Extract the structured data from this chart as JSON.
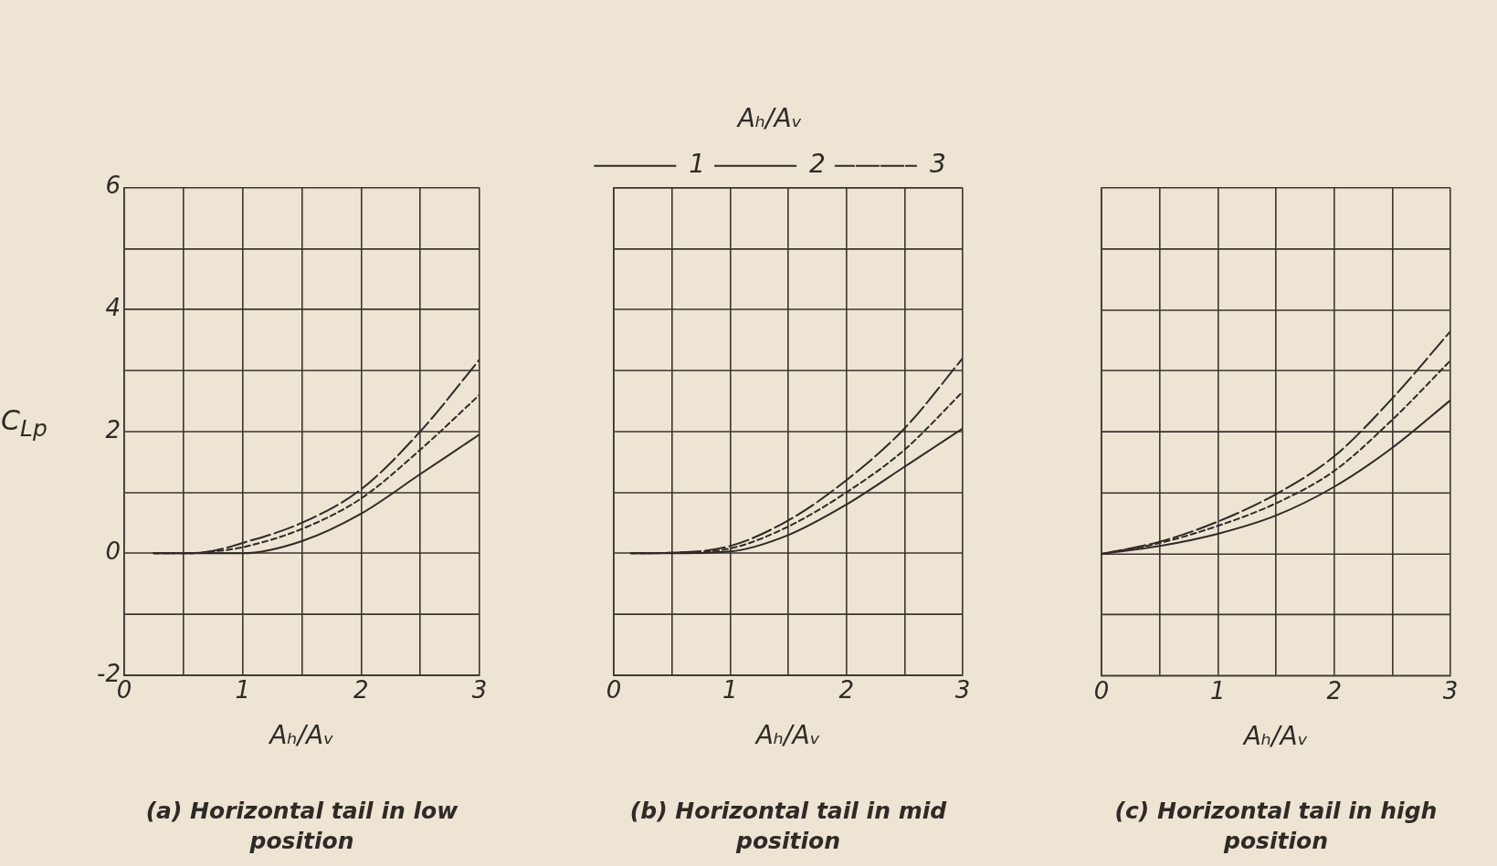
{
  "chart_data": [
    {
      "type": "line",
      "title": "(a) Horizontal tail in low position",
      "xlabel": "Aₕ/Aᵥ",
      "ylabel": "C$_{Lp}$",
      "x": [
        0.25,
        0.5,
        0.75,
        1,
        1.5,
        2,
        2.5,
        3
      ],
      "xlim": [
        0,
        3
      ],
      "ylim": [
        -2,
        6
      ],
      "xticks": [
        0,
        {
          "value": 0.5,
          "label": null
        },
        1,
        {
          "value": 1.5,
          "label": null
        },
        2,
        {
          "value": 2.5,
          "label": null
        },
        3
      ],
      "yticks": [
        -2,
        {
          "value": -1,
          "label": null
        },
        0,
        {
          "value": 1,
          "label": null
        },
        2,
        {
          "value": 3,
          "label": null
        },
        4,
        {
          "value": 5,
          "label": null
        },
        6
      ],
      "grid": true,
      "legend": false,
      "marker": "none",
      "series": [
        {
          "name": "1",
          "color": "#2e2a26",
          "line_style": "solid",
          "values": [
            0,
            0,
            0,
            0,
            0.2,
            0.65,
            1.3,
            1.95
          ]
        },
        {
          "name": "2",
          "color": "#2e2a26",
          "line_style": "dotted",
          "values": [
            0,
            0,
            0.03,
            0.1,
            0.4,
            0.9,
            1.7,
            2.6
          ]
        },
        {
          "name": "3",
          "color": "#2e2a26",
          "line_style": "dashed",
          "values": [
            0,
            0,
            0.04,
            0.17,
            0.5,
            1.05,
            2.0,
            3.18
          ]
        }
      ]
    },
    {
      "type": "line",
      "title": "(b) Horizontal tail in mid position",
      "xlabel": "Aₕ/Aᵥ",
      "legend_title": "Aₕ/Aᵥ",
      "x": [
        0.15,
        0.5,
        1,
        1.5,
        2,
        2.5,
        3
      ],
      "xlim": [
        0,
        3
      ],
      "ylim": [
        -2,
        6
      ],
      "xticks": [
        0,
        {
          "value": 0.5,
          "label": null
        },
        1,
        {
          "value": 1.5,
          "label": null
        },
        2,
        {
          "value": 2.5,
          "label": null
        },
        3
      ],
      "yticks": [
        -2,
        {
          "value": -1,
          "label": null
        },
        0,
        {
          "value": 1,
          "label": null
        },
        2,
        {
          "value": 3,
          "label": null
        },
        4,
        {
          "value": 5,
          "label": null
        },
        6
      ],
      "grid": true,
      "legend": "top",
      "tick_labels": "x",
      "marker": "none",
      "series": [
        {
          "name": "1",
          "color": "#2e2a26",
          "line_style": "solid",
          "values": [
            0,
            0,
            0.03,
            0.3,
            0.8,
            1.42,
            2.05
          ]
        },
        {
          "name": "2",
          "color": "#2e2a26",
          "line_style": "dotted",
          "values": [
            0,
            0.01,
            0.08,
            0.44,
            1.0,
            1.7,
            2.65
          ]
        },
        {
          "name": "3",
          "color": "#2e2a26",
          "line_style": "dashed",
          "values": [
            0,
            0.01,
            0.12,
            0.54,
            1.2,
            2.05,
            3.2
          ]
        }
      ]
    },
    {
      "type": "line",
      "title": "(c) Horizontal tail in high position",
      "xlabel": "Aₕ/Aᵥ",
      "x": [
        0,
        0.5,
        1,
        1.5,
        2,
        2.5,
        3
      ],
      "xlim": [
        0,
        3
      ],
      "ylim": [
        -2,
        6
      ],
      "xticks": [
        0,
        {
          "value": 0.5,
          "label": null
        },
        1,
        {
          "value": 1.5,
          "label": null
        },
        2,
        {
          "value": 2.5,
          "label": null
        },
        3
      ],
      "yticks": [
        -2,
        {
          "value": -1,
          "label": null
        },
        0,
        {
          "value": 1,
          "label": null
        },
        2,
        {
          "value": 3,
          "label": null
        },
        4,
        {
          "value": 5,
          "label": null
        },
        6
      ],
      "grid": true,
      "legend": false,
      "tick_labels": "x",
      "marker": "none",
      "series": [
        {
          "name": "1",
          "color": "#2e2a26",
          "line_style": "solid",
          "values": [
            0,
            0.13,
            0.33,
            0.63,
            1.1,
            1.74,
            2.52
          ]
        },
        {
          "name": "2",
          "color": "#2e2a26",
          "line_style": "dotted",
          "values": [
            0,
            0.18,
            0.46,
            0.83,
            1.36,
            2.2,
            3.17
          ]
        },
        {
          "name": "3",
          "color": "#2e2a26",
          "line_style": "dashed",
          "values": [
            0,
            0.2,
            0.53,
            0.98,
            1.6,
            2.55,
            3.65
          ]
        }
      ]
    }
  ]
}
